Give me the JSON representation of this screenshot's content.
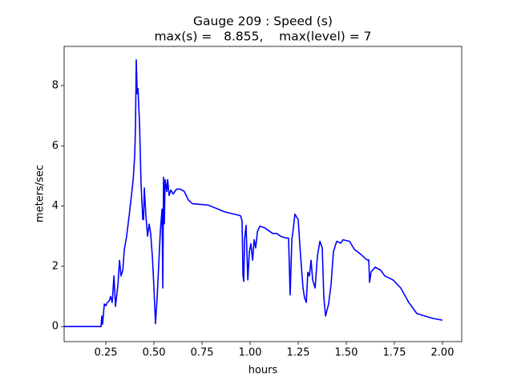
{
  "chart_data": {
    "type": "line",
    "title": "Gauge 209 : Speed (s)",
    "subtitle": "max(s) =   8.855,    max(level) = 7",
    "x_label": "hours",
    "y_label": "meters/sec",
    "color": "#0000ff",
    "xlim": [
      0.033,
      2.1
    ],
    "ylim": [
      -0.5,
      9.3
    ],
    "xticks": [
      0.25,
      {
        "value": 0.5,
        "label": "0.50"
      },
      0.75,
      {
        "value": 1.0,
        "label": "1.00"
      },
      1.25,
      {
        "value": 1.5,
        "label": "1.50"
      },
      1.75,
      {
        "value": 2.0,
        "label": "2.00"
      }
    ],
    "yticks": [
      0,
      2,
      4,
      6,
      8
    ],
    "x": [
      0.033,
      0.225,
      0.229,
      0.233,
      0.242,
      0.25,
      0.258,
      0.267,
      0.275,
      0.283,
      0.292,
      0.3,
      0.313,
      0.321,
      0.329,
      0.338,
      0.346,
      0.358,
      0.371,
      0.383,
      0.392,
      0.4,
      0.404,
      0.408,
      0.413,
      0.417,
      0.425,
      0.433,
      0.442,
      0.446,
      0.45,
      0.458,
      0.467,
      0.475,
      0.483,
      0.492,
      0.5,
      0.508,
      0.517,
      0.525,
      0.533,
      0.542,
      0.546,
      0.55,
      0.554,
      0.558,
      0.567,
      0.571,
      0.579,
      0.588,
      0.6,
      0.617,
      0.638,
      0.658,
      0.679,
      0.7,
      0.783,
      0.867,
      0.95,
      0.958,
      0.963,
      0.967,
      0.971,
      0.979,
      0.988,
      0.996,
      1.004,
      1.013,
      1.021,
      1.029,
      1.038,
      1.05,
      1.075,
      1.117,
      1.138,
      1.158,
      1.179,
      1.2,
      1.208,
      1.217,
      1.225,
      1.233,
      1.25,
      1.258,
      1.267,
      1.275,
      1.283,
      1.292,
      1.3,
      1.308,
      1.317,
      1.325,
      1.338,
      1.35,
      1.363,
      1.375,
      1.383,
      1.392,
      1.408,
      1.421,
      1.433,
      1.45,
      1.471,
      1.483,
      1.517,
      1.542,
      1.575,
      1.608,
      1.617,
      1.621,
      1.629,
      1.65,
      1.679,
      1.7,
      1.742,
      1.783,
      1.825,
      1.867,
      1.908,
      1.95,
      2.0
    ],
    "values": [
      0,
      0,
      0.35,
      0.08,
      0.75,
      0.69,
      0.8,
      0.85,
      1.0,
      0.8,
      1.68,
      0.67,
      1.41,
      2.2,
      1.68,
      1.87,
      2.56,
      3.0,
      3.68,
      4.35,
      4.88,
      5.68,
      6.61,
      8.855,
      7.73,
      7.9,
      6.75,
      4.75,
      3.55,
      3.55,
      4.6,
      3.68,
      3.0,
      3.4,
      3.09,
      2.3,
      1.28,
      0.1,
      1.0,
      2.08,
      3.15,
      3.9,
      1.28,
      4.96,
      3.41,
      4.88,
      4.48,
      4.88,
      4.35,
      4.53,
      4.4,
      4.56,
      4.56,
      4.48,
      4.2,
      4.08,
      4.03,
      3.81,
      3.68,
      3.52,
      1.68,
      1.5,
      2.88,
      3.36,
      1.55,
      2.48,
      2.75,
      2.2,
      2.88,
      2.61,
      3.15,
      3.33,
      3.28,
      3.09,
      3.09,
      3.0,
      2.95,
      2.93,
      1.05,
      2.88,
      3.28,
      3.73,
      3.55,
      2.75,
      1.95,
      1.28,
      0.96,
      0.8,
      1.8,
      1.68,
      2.2,
      1.55,
      1.28,
      2.35,
      2.83,
      2.61,
      1.0,
      0.35,
      0.75,
      1.41,
      2.48,
      2.83,
      2.77,
      2.88,
      2.83,
      2.56,
      2.4,
      2.21,
      2.21,
      1.47,
      1.81,
      1.97,
      1.87,
      1.68,
      1.55,
      1.28,
      0.8,
      0.43,
      0.35,
      0.27,
      0.21
    ]
  }
}
